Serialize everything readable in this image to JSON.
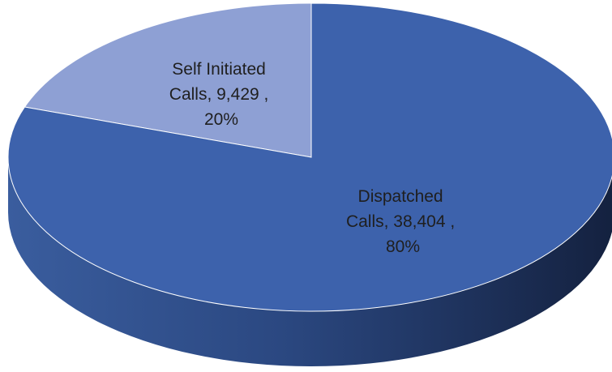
{
  "chart_data": {
    "type": "pie",
    "style": "3d",
    "title": "",
    "legend": "none",
    "slices": [
      {
        "category": "Self Initiated Calls",
        "label_lines": [
          "Self Initiated",
          "Calls,  9,429 ,",
          "20%"
        ],
        "value": 9429,
        "percent": 20,
        "color": "#8EA0D4"
      },
      {
        "category": "Dispatched Calls",
        "label_lines": [
          "Dispatched",
          "Calls,  38,404 ,",
          "80%"
        ],
        "value": 38404,
        "percent": 80,
        "color": "#3D62AC"
      }
    ]
  }
}
